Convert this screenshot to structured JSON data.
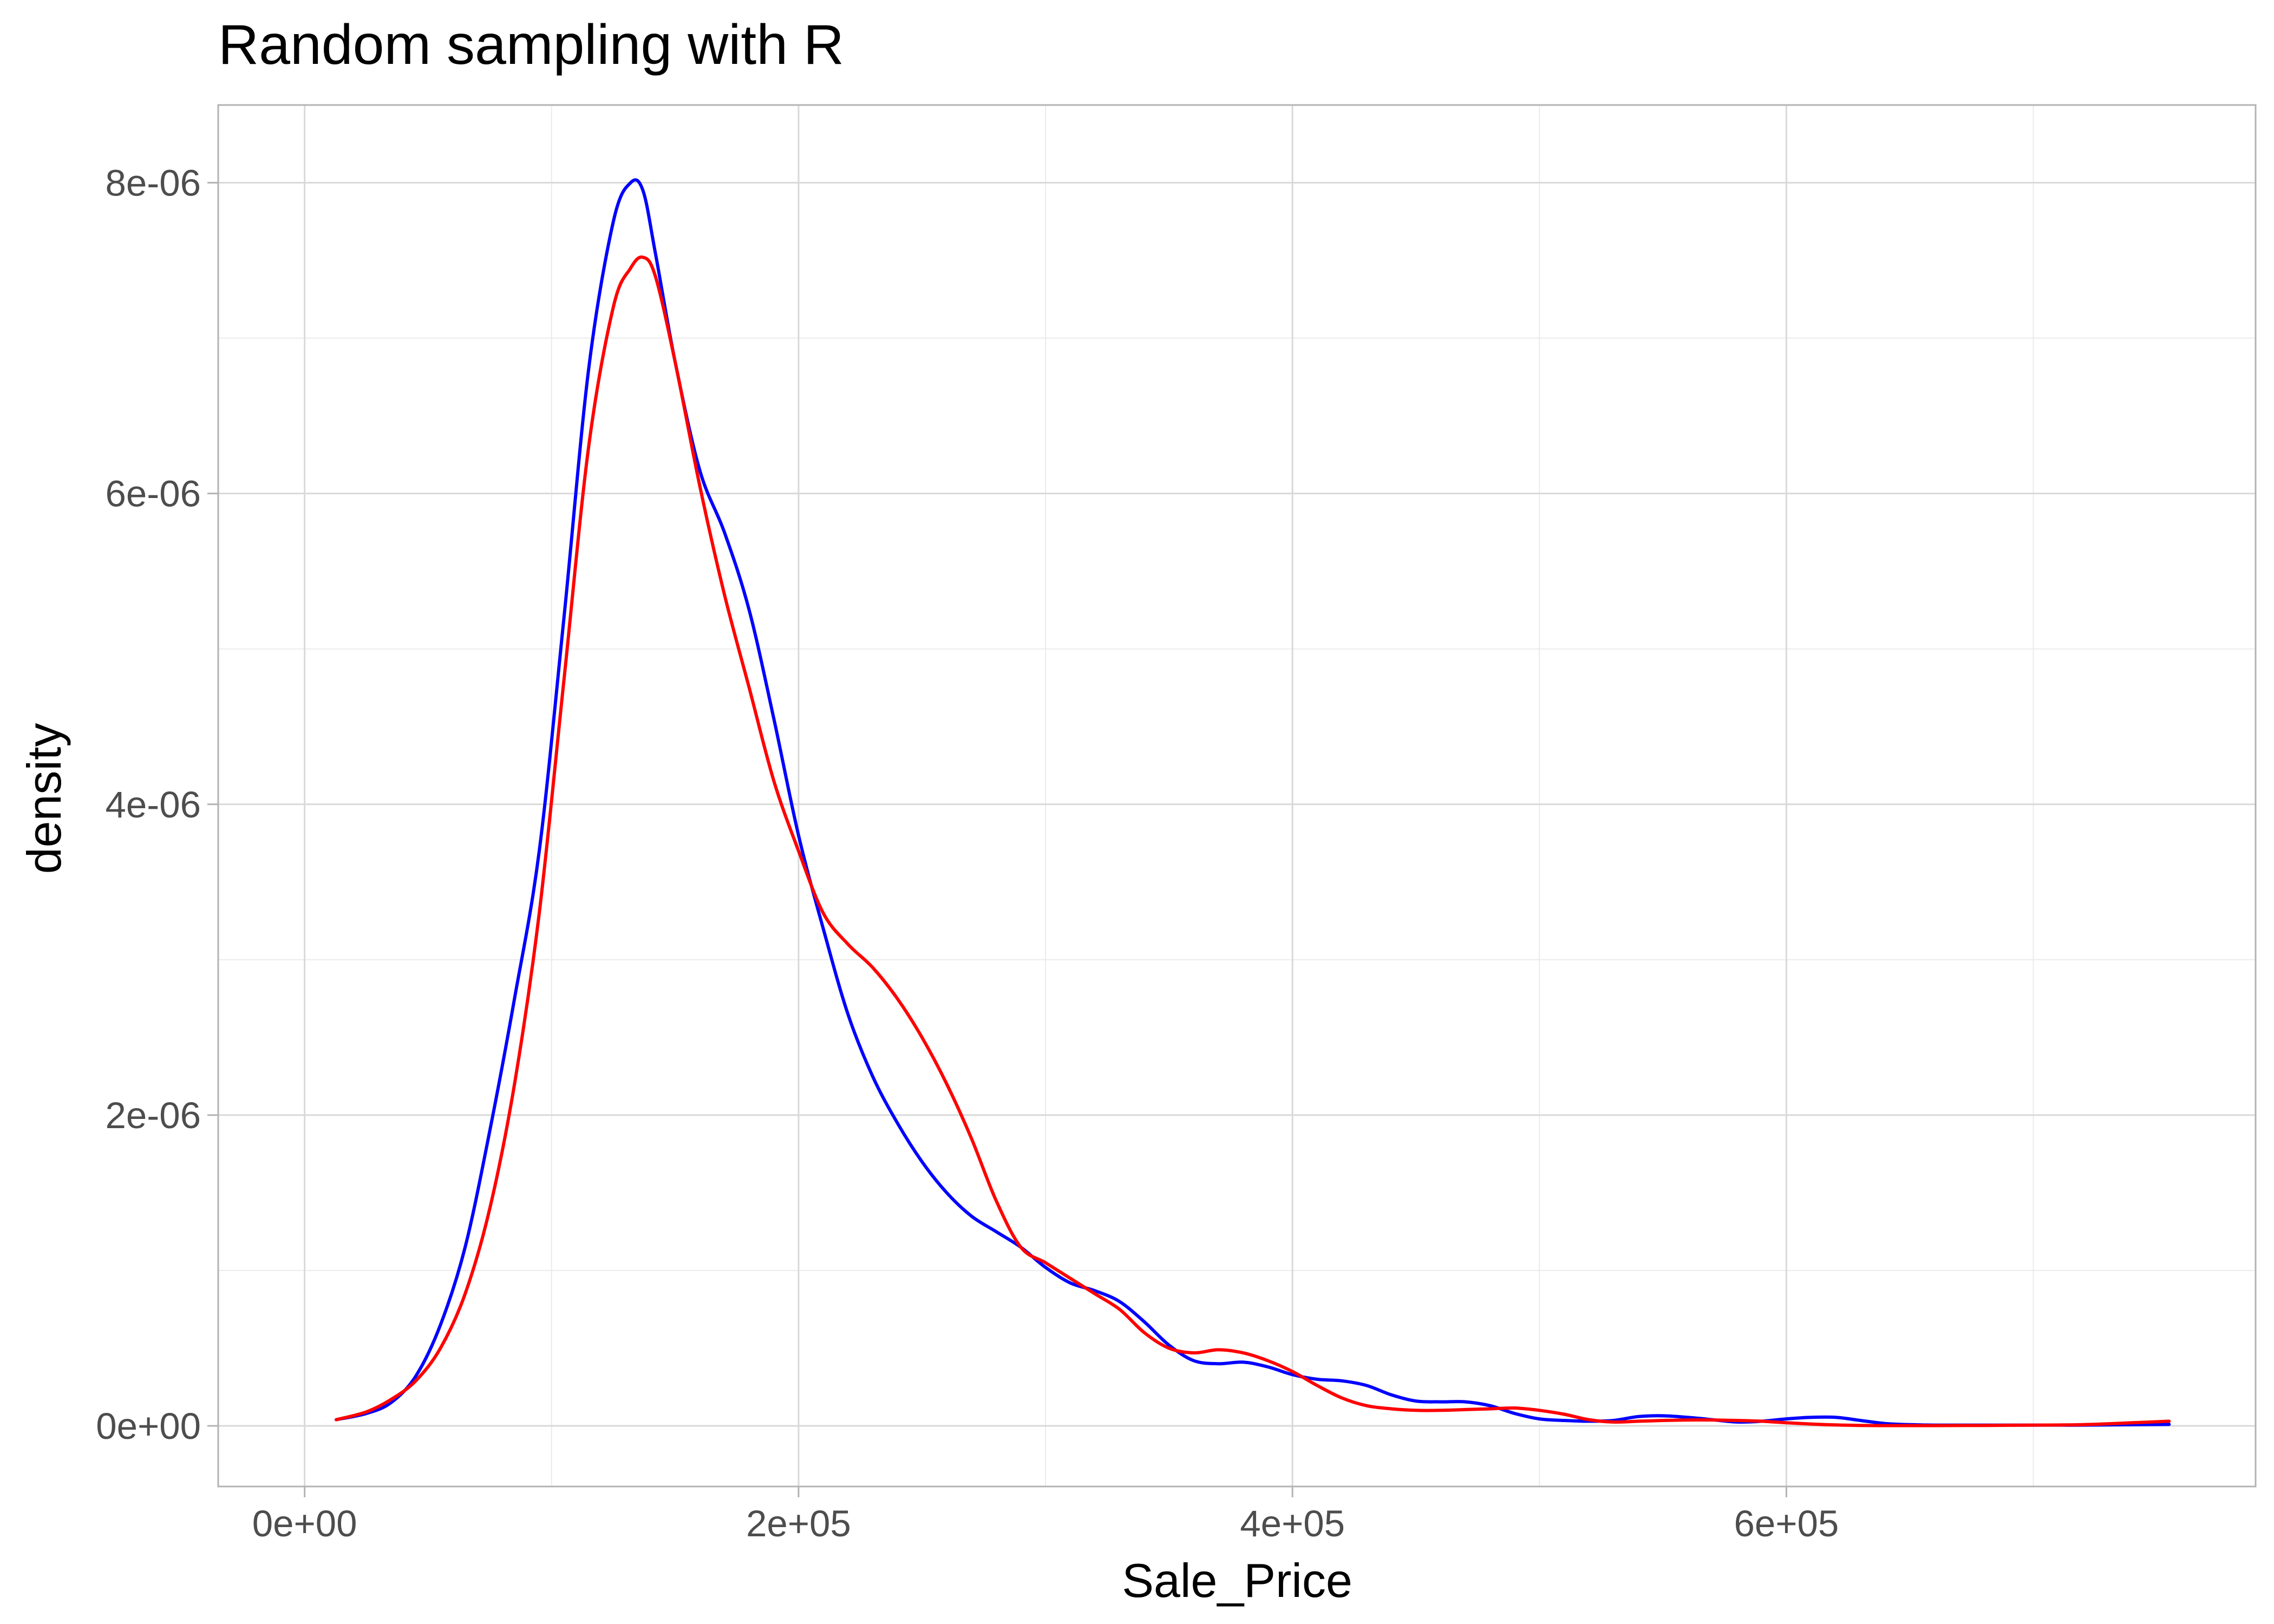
{
  "chart_data": {
    "type": "line",
    "title": "Random sampling with R",
    "xlabel": "Sale_Price",
    "ylabel": "density",
    "xlim": [
      -35000,
      790000
    ],
    "ylim": [
      -3.9e-07,
      8.5e-06
    ],
    "x_ticks": [
      0,
      200000,
      400000,
      600000
    ],
    "x_tick_labels": [
      "0e+00",
      "2e+05",
      "4e+05",
      "6e+05"
    ],
    "y_ticks": [
      0,
      2e-06,
      4e-06,
      6e-06,
      8e-06
    ],
    "y_tick_labels": [
      "0e+00",
      "2e-06",
      "4e-06",
      "6e-06",
      "8e-06"
    ],
    "x_minor": [
      100000,
      300000,
      500000,
      700000
    ],
    "y_minor": [
      1e-06,
      3e-06,
      5e-06,
      7e-06
    ],
    "grid": true,
    "legend": "none",
    "series": [
      {
        "color": "#0000ff",
        "x": [
          12789,
          25000,
          35000,
          45000,
          55000,
          65000,
          75000,
          85000,
          95000,
          105000,
          115000,
          125000,
          132000,
          137000,
          142000,
          150000,
          160000,
          170000,
          180000,
          190000,
          200000,
          210000,
          220000,
          230000,
          240000,
          250000,
          260000,
          270000,
          280000,
          290000,
          300000,
          310000,
          320000,
          330000,
          340000,
          350000,
          360000,
          370000,
          380000,
          390000,
          400000,
          410000,
          420000,
          430000,
          440000,
          450000,
          460000,
          470000,
          480000,
          490000,
          500000,
          510000,
          520000,
          530000,
          540000,
          550000,
          560000,
          570000,
          580000,
          590000,
          600000,
          610000,
          620000,
          630000,
          640000,
          650000,
          660000,
          680000,
          700000,
          720000,
          740000,
          755000
        ],
        "values": [
          4e-08,
          8e-08,
          1.5e-07,
          3.2e-07,
          6.5e-07,
          1.15e-06,
          1.9e-06,
          2.75e-06,
          3.7e-06,
          5.2e-06,
          6.8e-06,
          7.75e-06,
          8e-06,
          7.95e-06,
          7.55e-06,
          6.85e-06,
          6.15e-06,
          5.75e-06,
          5.25e-06,
          4.55e-06,
          3.8e-06,
          3.2e-06,
          2.65e-06,
          2.25e-06,
          1.95e-06,
          1.7e-06,
          1.5e-06,
          1.35e-06,
          1.25e-06,
          1.15e-06,
          1.02e-06,
          9.2e-07,
          8.7e-07,
          8e-07,
          6.7e-07,
          5.2e-07,
          4.2e-07,
          4e-07,
          4.1e-07,
          3.8e-07,
          3.3e-07,
          3e-07,
          2.9e-07,
          2.6e-07,
          2e-07,
          1.6e-07,
          1.55e-07,
          1.55e-07,
          1.3e-07,
          8e-08,
          4.5e-08,
          3.5e-08,
          3e-08,
          3.5e-08,
          6e-08,
          6.5e-08,
          5.5e-08,
          4e-08,
          2.5e-08,
          3e-08,
          4.5e-08,
          5.5e-08,
          5.5e-08,
          3.5e-08,
          1.5e-08,
          8e-09,
          5e-09,
          5e-09,
          5e-09,
          5e-09,
          8e-09,
          1e-08
        ]
      },
      {
        "color": "#ff0000",
        "x": [
          12789,
          25000,
          35000,
          45000,
          55000,
          65000,
          75000,
          85000,
          95000,
          105000,
          115000,
          125000,
          132000,
          137000,
          142000,
          150000,
          160000,
          170000,
          180000,
          190000,
          200000,
          210000,
          220000,
          230000,
          240000,
          250000,
          260000,
          270000,
          280000,
          290000,
          300000,
          310000,
          320000,
          330000,
          340000,
          350000,
          360000,
          370000,
          380000,
          390000,
          400000,
          410000,
          420000,
          430000,
          440000,
          450000,
          460000,
          470000,
          480000,
          490000,
          500000,
          510000,
          520000,
          530000,
          540000,
          550000,
          560000,
          570000,
          580000,
          590000,
          600000,
          610000,
          620000,
          630000,
          640000,
          650000,
          660000,
          680000,
          700000,
          720000,
          740000,
          755000
        ],
        "values": [
          4e-08,
          9e-08,
          1.7e-07,
          2.9e-07,
          5e-07,
          8.5e-07,
          1.4e-06,
          2.2e-06,
          3.3e-06,
          4.8e-06,
          6.3e-06,
          7.2e-06,
          7.45e-06,
          7.52e-06,
          7.4e-06,
          6.85e-06,
          6.05e-06,
          5.35e-06,
          4.75e-06,
          4.15e-06,
          3.7e-06,
          3.3e-06,
          3.1e-06,
          2.95e-06,
          2.75e-06,
          2.5e-06,
          2.2e-06,
          1.85e-06,
          1.45e-06,
          1.15e-06,
          1.05e-06,
          9.5e-07,
          8.5e-07,
          7.5e-07,
          6e-07,
          5e-07,
          4.7e-07,
          4.9e-07,
          4.7e-07,
          4.2e-07,
          3.5e-07,
          2.6e-07,
          1.8e-07,
          1.3e-07,
          1.1e-07,
          1e-07,
          1e-07,
          1.05e-07,
          1.1e-07,
          1.15e-07,
          1e-07,
          7.5e-08,
          4e-08,
          2.5e-08,
          3e-08,
          3.5e-08,
          3.8e-08,
          3.8e-08,
          3.5e-08,
          3e-08,
          2e-08,
          1.2e-08,
          6e-09,
          3e-09,
          2e-09,
          2e-09,
          2e-09,
          3e-09,
          5e-09,
          8e-09,
          2e-08,
          3e-08
        ]
      }
    ]
  }
}
